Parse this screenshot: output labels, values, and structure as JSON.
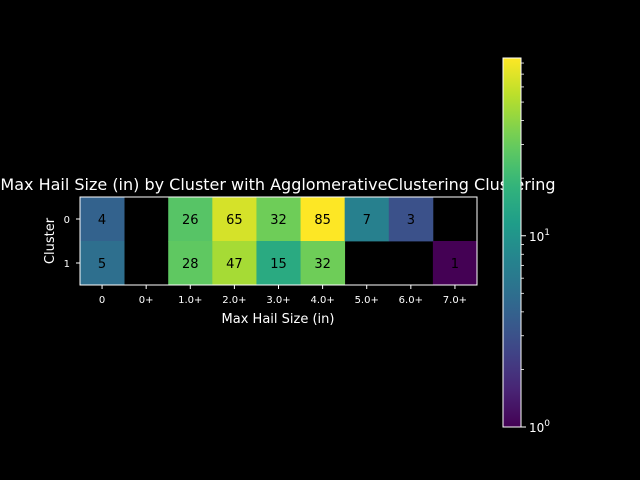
{
  "chart_data": {
    "type": "heatmap",
    "title": "Max Hail Size (in) by Cluster with AgglomerativeClustering Clustering",
    "xlabel": "Max Hail Size (in)",
    "ylabel": "Cluster",
    "x_categories": [
      "0",
      "0+",
      "1.0+",
      "2.0+",
      "3.0+",
      "4.0+",
      "5.0+",
      "6.0+",
      "7.0+"
    ],
    "y_categories": [
      "0",
      "1"
    ],
    "values": [
      [
        4,
        null,
        26,
        65,
        32,
        85,
        7,
        3,
        null
      ],
      [
        5,
        null,
        28,
        47,
        15,
        32,
        null,
        null,
        1
      ]
    ],
    "colormap": "viridis",
    "color_scale": "log",
    "colorbar": {
      "min": 1,
      "max": 85,
      "major_ticks": [
        {
          "value": 1,
          "base": "10",
          "exp": "0"
        },
        {
          "value": 10,
          "base": "10",
          "exp": "1"
        }
      ],
      "minor_ticks": [
        2,
        3,
        4,
        5,
        6,
        7,
        8,
        9,
        20,
        30,
        40,
        50,
        60,
        70,
        80
      ]
    },
    "background": "#000000",
    "foreground": "#ffffff",
    "annotation_color": "#000000"
  }
}
